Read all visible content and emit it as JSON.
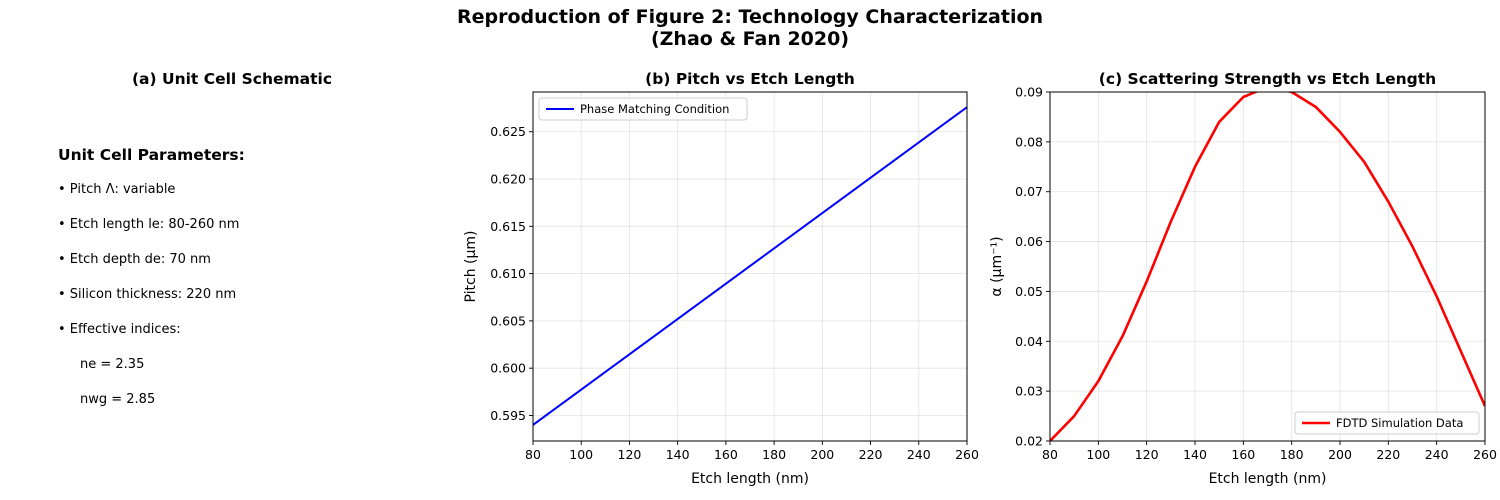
{
  "suptitle": {
    "line1": "Reproduction of Figure 2: Technology Characterization",
    "line2": "(Zhao & Fan 2020)"
  },
  "panel_a": {
    "title": "(a) Unit Cell Schematic",
    "heading": "Unit Cell Parameters:",
    "items": [
      "• Pitch Λ: variable",
      "• Etch length le: 80-260 nm",
      "• Etch depth de: 70 nm",
      "• Silicon thickness: 220 nm",
      "• Effective indices:"
    ],
    "sub_items": [
      "ne = 2.35",
      "nwg = 2.85"
    ]
  },
  "chart_data": [
    {
      "type": "line",
      "title": "(b) Pitch vs Etch Length",
      "xlabel": "Etch length (nm)",
      "ylabel": "Pitch (μm)",
      "xlim": [
        80,
        260
      ],
      "ylim": [
        0.5923,
        0.6292
      ],
      "xticks": [
        80,
        100,
        120,
        140,
        160,
        180,
        200,
        220,
        240,
        260
      ],
      "yticks": [
        0.595,
        0.6,
        0.605,
        0.61,
        0.615,
        0.62,
        0.625
      ],
      "grid": true,
      "legend_position": "upper-left",
      "series": [
        {
          "name": "Phase Matching Condition",
          "color": "#0000ff",
          "x": [
            80,
            260
          ],
          "y": [
            0.594,
            0.6276
          ]
        }
      ]
    },
    {
      "type": "line",
      "title": "(c) Scattering Strength vs Etch Length",
      "xlabel": "Etch length (nm)",
      "ylabel": "α (μm⁻¹)",
      "xlim": [
        80,
        260
      ],
      "ylim": [
        0.02,
        0.09
      ],
      "xticks": [
        80,
        100,
        120,
        140,
        160,
        180,
        200,
        220,
        240,
        260
      ],
      "yticks": [
        0.02,
        0.03,
        0.04,
        0.05,
        0.06,
        0.07,
        0.08,
        0.09
      ],
      "grid": true,
      "legend_position": "lower-right",
      "series": [
        {
          "name": "FDTD Simulation Data",
          "color": "#ff0000",
          "x": [
            80,
            90,
            100,
            110,
            120,
            130,
            140,
            150,
            160,
            170,
            180,
            190,
            200,
            210,
            220,
            230,
            240,
            250,
            260
          ],
          "y": [
            0.02,
            0.025,
            0.032,
            0.041,
            0.052,
            0.064,
            0.075,
            0.084,
            0.089,
            0.091,
            0.09,
            0.087,
            0.082,
            0.076,
            0.068,
            0.059,
            0.049,
            0.038,
            0.027
          ]
        }
      ]
    }
  ]
}
